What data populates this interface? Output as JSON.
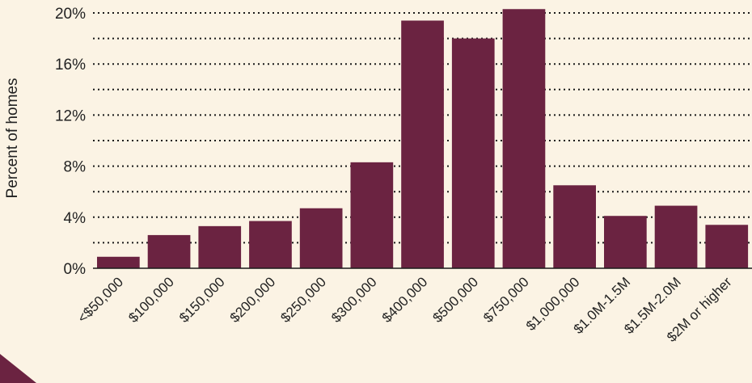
{
  "chart_data": {
    "type": "bar",
    "title": "",
    "xlabel": "",
    "ylabel": "Percent of homes",
    "categories": [
      "<$50,000",
      "$100,000",
      "$150,000",
      "$200,000",
      "$250,000",
      "$300,000",
      "$400,000",
      "$500,000",
      "$750,000",
      "$1,000,000",
      "$1.0M-1.5M",
      "$1.5M-2.0M",
      "$2M or higher"
    ],
    "values": [
      0.9,
      2.6,
      3.3,
      3.7,
      4.7,
      8.3,
      19.4,
      18.0,
      20.3,
      6.5,
      4.1,
      4.9,
      3.4
    ],
    "ylim": [
      0,
      20
    ],
    "yticks": [
      "0%",
      "4%",
      "8%",
      "12%",
      "16%",
      "20%"
    ],
    "ytick_values": [
      0,
      4,
      8,
      12,
      16,
      20
    ],
    "grid": true,
    "colors": {
      "bar": "#6b2341",
      "background": "#fbf3e4",
      "grid": "#1a1a1a",
      "accent": "#6b2341"
    }
  }
}
